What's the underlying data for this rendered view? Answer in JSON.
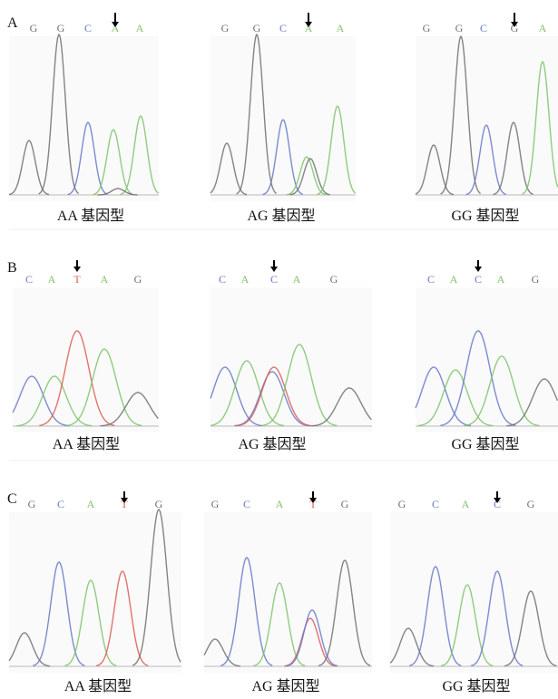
{
  "panels": [
    {
      "label": "A",
      "plots": [
        {
          "bases": [
            "G",
            "G",
            "C",
            "A",
            "A"
          ],
          "caption": "AA 基因型"
        },
        {
          "bases": [
            "G",
            "G",
            "C",
            "A",
            "A"
          ],
          "caption": "AG 基因型"
        },
        {
          "bases": [
            "G",
            "G",
            "C",
            "G",
            "A"
          ],
          "caption": "GG 基因型"
        }
      ]
    },
    {
      "label": "B",
      "plots": [
        {
          "bases": [
            "C",
            "A",
            "T",
            "A",
            "G"
          ],
          "caption": "AA 基因型"
        },
        {
          "bases": [
            "C",
            "A",
            "C",
            "A",
            "G"
          ],
          "caption": "AG 基因型"
        },
        {
          "bases": [
            "C",
            "A",
            "C",
            "A",
            "G"
          ],
          "caption": "GG 基因型"
        }
      ]
    },
    {
      "label": "C",
      "plots": [
        {
          "bases": [
            "G",
            "C",
            "A",
            "T",
            "G"
          ],
          "caption": "AA 基因型"
        },
        {
          "bases": [
            "G",
            "C",
            "A",
            "T",
            "G"
          ],
          "caption": "AG 基因型"
        },
        {
          "bases": [
            "G",
            "C",
            "A",
            "C",
            "G"
          ],
          "caption": "GG 基因型"
        }
      ]
    }
  ]
}
